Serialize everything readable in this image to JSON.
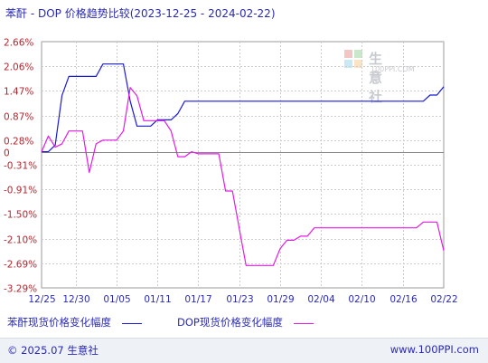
{
  "title": "苯酐 - DOP 价格趋势比较(2023-12-25 - 2024-02-22)",
  "watermark": {
    "name": "生意社",
    "url": "100PPI.COM"
  },
  "footer": {
    "copyright": "© 2025.07 生意社",
    "url": "www.100PPI.com"
  },
  "colors": {
    "series_1": "#1a1ad6",
    "series_2": "#e61ae6",
    "grid": "#cccccc",
    "zero": "#888888",
    "axis_text": "#b3262e",
    "date_text": "#2b2bb5"
  },
  "chart_data": {
    "type": "line",
    "ylim": [
      -3.29,
      2.66
    ],
    "y_ticks": [
      "2.66%",
      "2.06%",
      "1.47%",
      "0.87%",
      "0.28%",
      "0",
      "-0.31%",
      "-0.91%",
      "-1.50%",
      "-2.10%",
      "-2.69%",
      "-3.29%"
    ],
    "y_tick_values": [
      2.66,
      2.06,
      1.47,
      0.87,
      0.28,
      0,
      -0.31,
      -0.91,
      -1.5,
      -2.1,
      -2.69,
      -3.29
    ],
    "x_range": [
      "2023-12-25",
      "2024-02-22"
    ],
    "x_ticks": [
      "12/25",
      "12/30",
      "01/05",
      "01/11",
      "01/17",
      "01/23",
      "01/29",
      "02/04",
      "02/10",
      "02/16",
      "02/22"
    ],
    "x_tick_dates": [
      "2023-12-25",
      "2023-12-30",
      "2024-01-05",
      "2024-01-11",
      "2024-01-17",
      "2024-01-23",
      "2024-01-29",
      "2024-02-04",
      "2024-02-10",
      "2024-02-16",
      "2024-02-22"
    ],
    "grid": true,
    "legend_position": "bottom",
    "series": [
      {
        "name": "苯酐现货价格变化幅度",
        "points": [
          [
            "2023-12-25",
            0.0
          ],
          [
            "2023-12-26",
            0.0
          ],
          [
            "2023-12-27",
            0.16
          ],
          [
            "2023-12-28",
            1.36
          ],
          [
            "2023-12-29",
            1.82
          ],
          [
            "2023-12-31",
            1.82
          ],
          [
            "2024-01-02",
            1.82
          ],
          [
            "2024-01-03",
            2.12
          ],
          [
            "2024-01-06",
            2.12
          ],
          [
            "2024-01-07",
            1.22
          ],
          [
            "2024-01-08",
            0.62
          ],
          [
            "2024-01-10",
            0.62
          ],
          [
            "2024-01-11",
            0.77
          ],
          [
            "2024-01-13",
            0.77
          ],
          [
            "2024-01-14",
            0.92
          ],
          [
            "2024-01-15",
            1.22
          ],
          [
            "2024-01-19",
            1.22
          ],
          [
            "2024-01-25",
            1.22
          ],
          [
            "2024-02-01",
            1.22
          ],
          [
            "2024-02-08",
            1.22
          ],
          [
            "2024-02-15",
            1.22
          ],
          [
            "2024-02-19",
            1.22
          ],
          [
            "2024-02-20",
            1.37
          ],
          [
            "2024-02-21",
            1.37
          ],
          [
            "2024-02-22",
            1.57
          ]
        ]
      },
      {
        "name": "DOP现货价格变化幅度",
        "points": [
          [
            "2023-12-25",
            0.0
          ],
          [
            "2023-12-26",
            0.38
          ],
          [
            "2023-12-27",
            0.11
          ],
          [
            "2023-12-28",
            0.19
          ],
          [
            "2023-12-29",
            0.5
          ],
          [
            "2023-12-30",
            0.5
          ],
          [
            "2023-12-31",
            0.5
          ],
          [
            "2024-01-01",
            -0.5
          ],
          [
            "2024-01-02",
            0.19
          ],
          [
            "2024-01-03",
            0.28
          ],
          [
            "2024-01-05",
            0.28
          ],
          [
            "2024-01-06",
            0.5
          ],
          [
            "2024-01-07",
            1.55
          ],
          [
            "2024-01-08",
            1.35
          ],
          [
            "2024-01-09",
            0.75
          ],
          [
            "2024-01-11",
            0.75
          ],
          [
            "2024-01-12",
            0.75
          ],
          [
            "2024-01-13",
            0.5
          ],
          [
            "2024-01-14",
            -0.12
          ],
          [
            "2024-01-15",
            -0.12
          ],
          [
            "2024-01-16",
            0.0
          ],
          [
            "2024-01-17",
            -0.05
          ],
          [
            "2024-01-18",
            -0.05
          ],
          [
            "2024-01-20",
            -0.05
          ],
          [
            "2024-01-21",
            -0.95
          ],
          [
            "2024-01-22",
            -0.95
          ],
          [
            "2024-01-23",
            -1.85
          ],
          [
            "2024-01-24",
            -2.75
          ],
          [
            "2024-01-28",
            -2.75
          ],
          [
            "2024-01-29",
            -2.34
          ],
          [
            "2024-01-30",
            -2.14
          ],
          [
            "2024-01-31",
            -2.14
          ],
          [
            "2024-02-01",
            -2.04
          ],
          [
            "2024-02-02",
            -2.04
          ],
          [
            "2024-02-03",
            -1.84
          ],
          [
            "2024-02-05",
            -1.84
          ],
          [
            "2024-02-10",
            -1.84
          ],
          [
            "2024-02-15",
            -1.84
          ],
          [
            "2024-02-18",
            -1.84
          ],
          [
            "2024-02-19",
            -1.7
          ],
          [
            "2024-02-21",
            -1.7
          ],
          [
            "2024-02-22",
            -2.39
          ]
        ]
      }
    ]
  }
}
